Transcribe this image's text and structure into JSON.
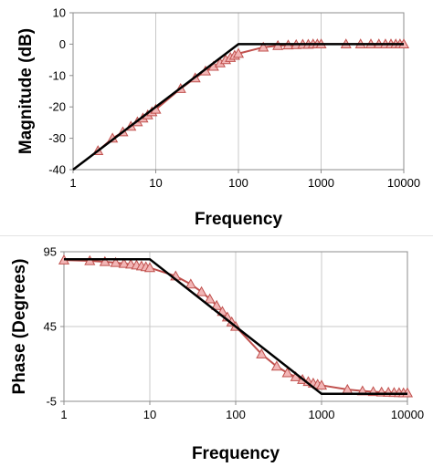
{
  "chart_data": [
    {
      "type": "line",
      "xlabel": "Frequency",
      "ylabel": "Magnitude (dB)",
      "x_scale": "log",
      "xlim": [
        1,
        10000
      ],
      "ylim": [
        -40,
        10
      ],
      "x_ticks": [
        "1",
        "10",
        "100",
        "1000",
        "10000"
      ],
      "y_ticks": [
        "10",
        "0",
        "-10",
        "-20",
        "-30",
        "-40"
      ],
      "grid": "vertical",
      "legend": "none",
      "series": [
        {
          "color": "#000000",
          "marker": "none",
          "points": [
            [
              1,
              -40
            ],
            [
              100,
              0
            ],
            [
              10000,
              0
            ]
          ]
        },
        {
          "color": "#c0504d",
          "marker_fill": "#f2b6b6",
          "marker": "triangle",
          "points": [
            [
              2,
              -34
            ],
            [
              3,
              -30
            ],
            [
              4,
              -28
            ],
            [
              5,
              -26.2
            ],
            [
              6,
              -24.8
            ],
            [
              7,
              -23.6
            ],
            [
              8,
              -22.6
            ],
            [
              9,
              -21.6
            ],
            [
              10,
              -20.8
            ],
            [
              20,
              -14.2
            ],
            [
              30,
              -10.8
            ],
            [
              40,
              -8.6
            ],
            [
              50,
              -7.1
            ],
            [
              60,
              -6
            ],
            [
              70,
              -5
            ],
            [
              80,
              -4.3
            ],
            [
              90,
              -3.6
            ],
            [
              100,
              -3
            ],
            [
              200,
              -1
            ],
            [
              300,
              -0.5
            ],
            [
              400,
              -0.3
            ],
            [
              500,
              -0.2
            ],
            [
              600,
              -0.1
            ],
            [
              700,
              -0.1
            ],
            [
              800,
              0
            ],
            [
              900,
              0
            ],
            [
              1000,
              0
            ],
            [
              2000,
              0
            ],
            [
              3000,
              0
            ],
            [
              4000,
              0
            ],
            [
              5000,
              0
            ],
            [
              6000,
              0
            ],
            [
              7000,
              0
            ],
            [
              8000,
              0
            ],
            [
              9000,
              0
            ],
            [
              10000,
              0
            ]
          ]
        }
      ]
    },
    {
      "type": "line",
      "xlabel": "Frequency",
      "ylabel": "Phase (Degrees)",
      "x_scale": "log",
      "xlim": [
        1,
        10000
      ],
      "ylim": [
        -5,
        95
      ],
      "x_ticks": [
        "1",
        "10",
        "100",
        "1000",
        "10000"
      ],
      "y_ticks": [
        "95",
        "45",
        "-5"
      ],
      "grid": "both",
      "legend": "none",
      "series": [
        {
          "color": "#000000",
          "marker": "none",
          "points": [
            [
              1,
              90
            ],
            [
              10,
              90
            ],
            [
              1000,
              0
            ],
            [
              10000,
              0
            ]
          ]
        },
        {
          "color": "#c0504d",
          "marker_fill": "#f2b6b6",
          "marker": "triangle",
          "points": [
            [
              1,
              89.4
            ],
            [
              2,
              88.9
            ],
            [
              3,
              88.3
            ],
            [
              4,
              87.7
            ],
            [
              5,
              87.1
            ],
            [
              6,
              86.6
            ],
            [
              7,
              86
            ],
            [
              8,
              85.4
            ],
            [
              9,
              84.9
            ],
            [
              10,
              84.3
            ],
            [
              20,
              78.7
            ],
            [
              30,
              73.3
            ],
            [
              40,
              68.2
            ],
            [
              50,
              63.4
            ],
            [
              60,
              59
            ],
            [
              70,
              55
            ],
            [
              80,
              51.3
            ],
            [
              90,
              48
            ],
            [
              100,
              45
            ],
            [
              200,
              26.6
            ],
            [
              300,
              18.4
            ],
            [
              400,
              14
            ],
            [
              500,
              11.3
            ],
            [
              600,
              9.5
            ],
            [
              700,
              8.1
            ],
            [
              800,
              7.1
            ],
            [
              900,
              6.3
            ],
            [
              1000,
              5.7
            ],
            [
              2000,
              2.9
            ],
            [
              3000,
              1.9
            ],
            [
              4000,
              1.4
            ],
            [
              5000,
              1.1
            ],
            [
              6000,
              1
            ],
            [
              7000,
              0.8
            ],
            [
              8000,
              0.7
            ],
            [
              9000,
              0.6
            ],
            [
              10000,
              0.6
            ]
          ]
        }
      ]
    }
  ]
}
